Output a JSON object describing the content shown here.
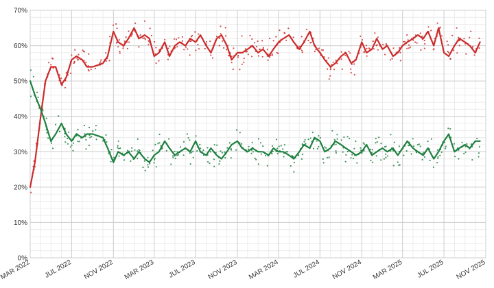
{
  "chart_data": {
    "type": "line",
    "title": "",
    "xlabel": "",
    "ylabel": "",
    "ylim": [
      0,
      70
    ],
    "yticks": [
      "0%",
      "10%",
      "20%",
      "30%",
      "40%",
      "50%",
      "60%",
      "70%"
    ],
    "yvalues": [
      0,
      10,
      20,
      30,
      40,
      50,
      60,
      70
    ],
    "xlim": [
      "2022-03-01",
      "2025-11-01"
    ],
    "xticks": [
      {
        "label": "MAR 2022",
        "date": "2022-03-01"
      },
      {
        "label": "JUL 2022",
        "date": "2022-07-01"
      },
      {
        "label": "NOV 2022",
        "date": "2022-11-01"
      },
      {
        "label": "MAR 2023",
        "date": "2023-03-01"
      },
      {
        "label": "JUL 2023",
        "date": "2023-07-01"
      },
      {
        "label": "NOV 2023",
        "date": "2023-11-01"
      },
      {
        "label": "MAR 2024",
        "date": "2024-03-01"
      },
      {
        "label": "JUL 2024",
        "date": "2024-07-01"
      },
      {
        "label": "NOV 2024",
        "date": "2024-11-01"
      },
      {
        "label": "MAR 2025",
        "date": "2025-03-01"
      },
      {
        "label": "JUL 2025",
        "date": "2025-07-01"
      },
      {
        "label": "NOV 2025",
        "date": "2025-11-01"
      }
    ],
    "grid": true,
    "legend": "none",
    "series": [
      {
        "color": "#cc2b2b",
        "x": [
          "2022-03-01",
          "2022-03-15",
          "2022-04-01",
          "2022-04-15",
          "2022-05-01",
          "2022-05-15",
          "2022-06-01",
          "2022-06-15",
          "2022-07-01",
          "2022-07-15",
          "2022-08-01",
          "2022-08-15",
          "2022-09-01",
          "2022-10-01",
          "2022-10-15",
          "2022-11-01",
          "2022-11-15",
          "2022-12-01",
          "2022-12-15",
          "2023-01-01",
          "2023-01-15",
          "2023-02-01",
          "2023-02-15",
          "2023-03-01",
          "2023-03-15",
          "2023-04-01",
          "2023-04-15",
          "2023-05-01",
          "2023-05-15",
          "2023-06-01",
          "2023-06-15",
          "2023-07-01",
          "2023-07-15",
          "2023-08-01",
          "2023-08-15",
          "2023-09-01",
          "2023-09-15",
          "2023-10-01",
          "2023-10-15",
          "2023-11-01",
          "2023-11-15",
          "2023-12-01",
          "2023-12-15",
          "2024-01-01",
          "2024-01-15",
          "2024-02-01",
          "2024-02-15",
          "2024-03-01",
          "2024-03-15",
          "2024-04-01",
          "2024-04-15",
          "2024-05-01",
          "2024-05-15",
          "2024-06-01",
          "2024-06-15",
          "2024-07-01",
          "2024-07-15",
          "2024-08-01",
          "2024-08-15",
          "2024-09-01",
          "2024-09-15",
          "2024-10-01",
          "2024-10-15",
          "2024-11-01",
          "2024-11-15",
          "2024-12-01",
          "2024-12-15",
          "2025-01-01",
          "2025-01-15",
          "2025-02-01",
          "2025-02-15",
          "2025-03-01",
          "2025-03-15",
          "2025-04-01",
          "2025-04-15",
          "2025-05-01",
          "2025-05-15",
          "2025-06-01",
          "2025-06-15",
          "2025-07-01",
          "2025-07-15",
          "2025-08-01",
          "2025-08-15",
          "2025-09-01",
          "2025-09-15",
          "2025-10-01",
          "2025-10-15"
        ],
        "values": [
          20,
          27,
          40,
          50,
          54,
          54,
          49,
          51,
          56,
          57,
          56,
          54,
          54,
          55,
          57,
          64,
          61,
          60,
          62,
          65,
          62,
          63,
          62,
          57,
          58,
          61,
          57,
          60,
          61,
          60,
          62,
          61,
          63,
          60,
          58,
          62,
          63,
          60,
          56,
          58,
          58,
          59,
          60,
          58,
          59,
          57,
          59,
          61,
          62,
          63,
          61,
          59,
          61,
          64,
          60,
          58,
          56,
          54,
          55,
          57,
          58,
          55,
          56,
          61,
          58,
          59,
          62,
          59,
          60,
          57,
          58,
          60,
          61,
          62,
          63,
          62,
          64,
          60,
          65,
          58,
          57,
          60,
          62,
          61,
          60,
          58,
          61
        ]
      },
      {
        "color": "#1e8040",
        "x": [
          "2022-03-01",
          "2022-03-15",
          "2022-04-01",
          "2022-04-15",
          "2022-05-01",
          "2022-05-15",
          "2022-06-01",
          "2022-06-15",
          "2022-07-01",
          "2022-07-15",
          "2022-08-01",
          "2022-08-15",
          "2022-09-01",
          "2022-10-01",
          "2022-10-15",
          "2022-11-01",
          "2022-11-15",
          "2022-12-01",
          "2022-12-15",
          "2023-01-01",
          "2023-01-15",
          "2023-02-01",
          "2023-02-15",
          "2023-03-01",
          "2023-03-15",
          "2023-04-01",
          "2023-04-15",
          "2023-05-01",
          "2023-05-15",
          "2023-06-01",
          "2023-06-15",
          "2023-07-01",
          "2023-07-15",
          "2023-08-01",
          "2023-08-15",
          "2023-09-01",
          "2023-09-15",
          "2023-10-01",
          "2023-10-15",
          "2023-11-01",
          "2023-11-15",
          "2023-12-01",
          "2023-12-15",
          "2024-01-01",
          "2024-01-15",
          "2024-02-01",
          "2024-02-15",
          "2024-03-01",
          "2024-03-15",
          "2024-04-01",
          "2024-04-15",
          "2024-05-01",
          "2024-05-15",
          "2024-06-01",
          "2024-06-15",
          "2024-07-01",
          "2024-07-15",
          "2024-08-01",
          "2024-08-15",
          "2024-09-01",
          "2024-09-15",
          "2024-10-01",
          "2024-10-15",
          "2024-11-01",
          "2024-11-15",
          "2024-12-01",
          "2024-12-15",
          "2025-01-01",
          "2025-01-15",
          "2025-02-01",
          "2025-02-15",
          "2025-03-01",
          "2025-03-15",
          "2025-04-01",
          "2025-04-15",
          "2025-05-01",
          "2025-05-15",
          "2025-06-01",
          "2025-06-15",
          "2025-07-01",
          "2025-07-15",
          "2025-08-01",
          "2025-08-15",
          "2025-09-01",
          "2025-09-15",
          "2025-10-01",
          "2025-10-15"
        ],
        "values": [
          50,
          46,
          42,
          38,
          33,
          35,
          38,
          35,
          33,
          35,
          34,
          35,
          35,
          34,
          31,
          27,
          30,
          29,
          30,
          28,
          30,
          28,
          27,
          29,
          30,
          33,
          31,
          29,
          30,
          31,
          30,
          33,
          30,
          29,
          31,
          29,
          28,
          30,
          32,
          33,
          31,
          30,
          31,
          30,
          30,
          29,
          31,
          30,
          30,
          29,
          28,
          30,
          32,
          31,
          34,
          33,
          30,
          31,
          33,
          32,
          31,
          30,
          29,
          30,
          32,
          29,
          30,
          31,
          30,
          31,
          29,
          31,
          33,
          31,
          30,
          29,
          31,
          28,
          30,
          33,
          35,
          30,
          31,
          32,
          31,
          33,
          33
        ]
      }
    ]
  }
}
